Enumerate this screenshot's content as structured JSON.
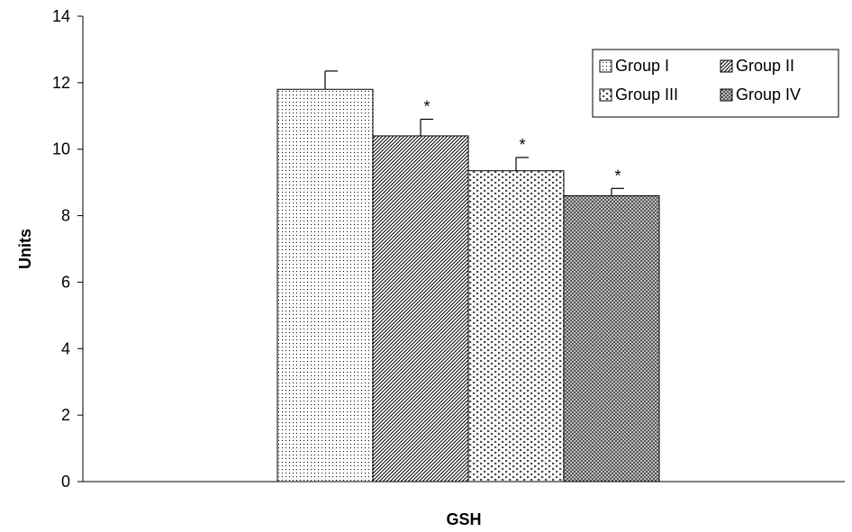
{
  "chart_data": {
    "type": "bar",
    "categories": [
      "GSH"
    ],
    "series": [
      {
        "name": "Group I",
        "values": [
          11.8
        ],
        "error": [
          0.55
        ],
        "significance": ""
      },
      {
        "name": "Group II",
        "values": [
          10.4
        ],
        "error": [
          0.5
        ],
        "significance": "*"
      },
      {
        "name": "Group III",
        "values": [
          9.35
        ],
        "error": [
          0.4
        ],
        "significance": "*"
      },
      {
        "name": "Group IV",
        "values": [
          8.6
        ],
        "error": [
          0.22
        ],
        "significance": "*"
      }
    ],
    "xlabel": "GSH",
    "ylabel": "Units",
    "ylim": [
      0,
      14
    ],
    "yticks": [
      "0",
      "2",
      "4",
      "6",
      "8",
      "10",
      "12",
      "14"
    ],
    "grid": false,
    "legend_position": "top-right"
  }
}
